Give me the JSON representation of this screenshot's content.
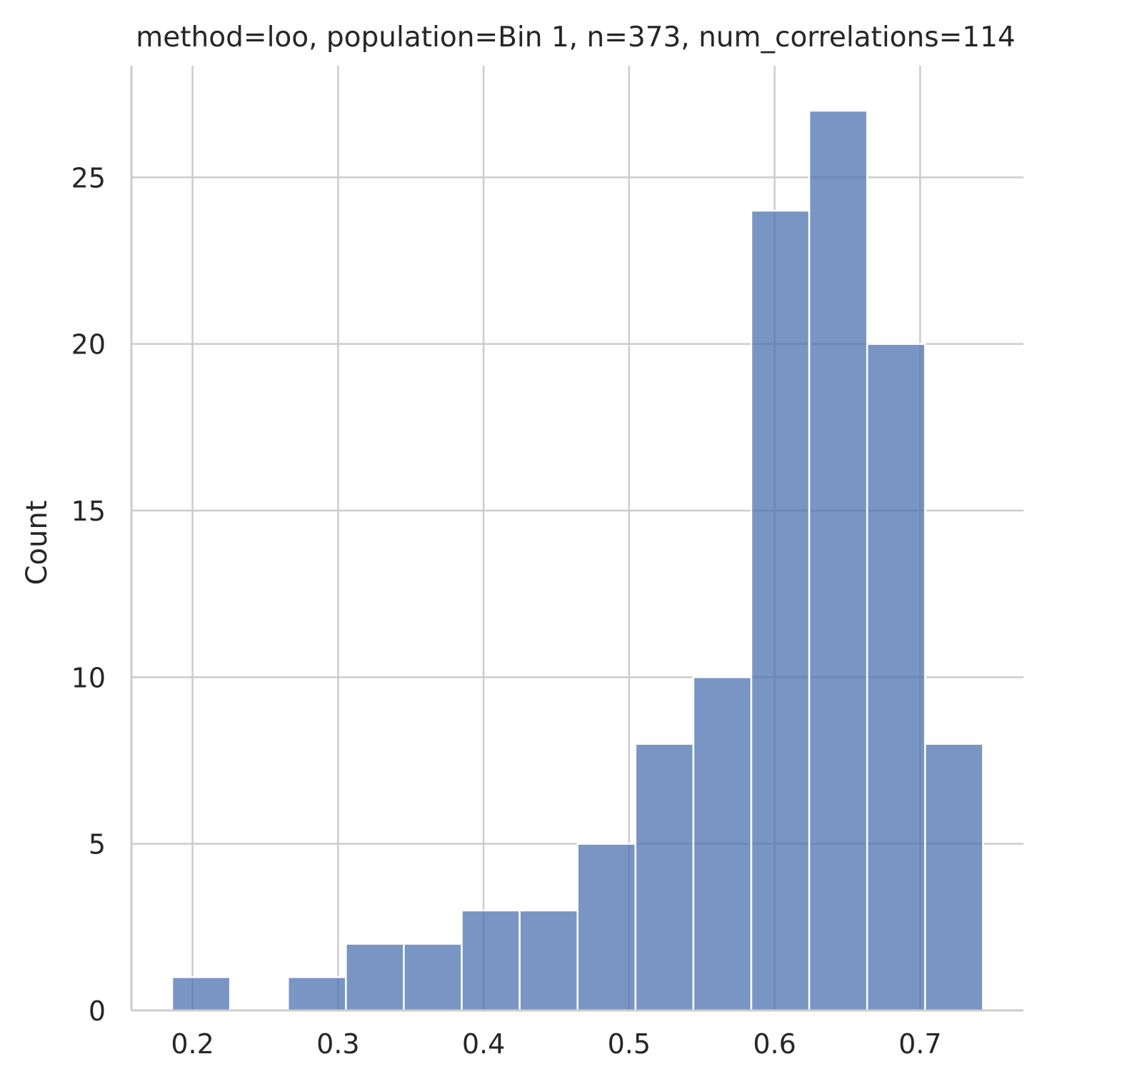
{
  "chart_data": {
    "type": "bar",
    "title": "method=loo, population=Bin 1, n=373, num_correlations=114",
    "xlabel": "",
    "ylabel": "Count",
    "bin_edges": [
      0.186,
      0.2258,
      0.2656,
      0.3054,
      0.3452,
      0.385,
      0.4248,
      0.4646,
      0.5044,
      0.5442,
      0.584,
      0.6238,
      0.6636,
      0.7034,
      0.7432
    ],
    "values": [
      1,
      0,
      1,
      2,
      2,
      3,
      3,
      5,
      8,
      10,
      24,
      27,
      20,
      8
    ],
    "xlim": [
      0.158,
      0.771
    ],
    "ylim": [
      0,
      28.35
    ],
    "xticks": [
      0.2,
      0.3,
      0.4,
      0.5,
      0.6,
      0.7
    ],
    "xtick_labels": [
      "0.2",
      "0.3",
      "0.4",
      "0.5",
      "0.6",
      "0.7"
    ],
    "yticks": [
      0,
      5,
      10,
      15,
      20,
      25
    ],
    "ytick_labels": [
      "0",
      "5",
      "10",
      "15",
      "20",
      "25"
    ],
    "grid": true,
    "bar_color": "#4c72b0"
  }
}
